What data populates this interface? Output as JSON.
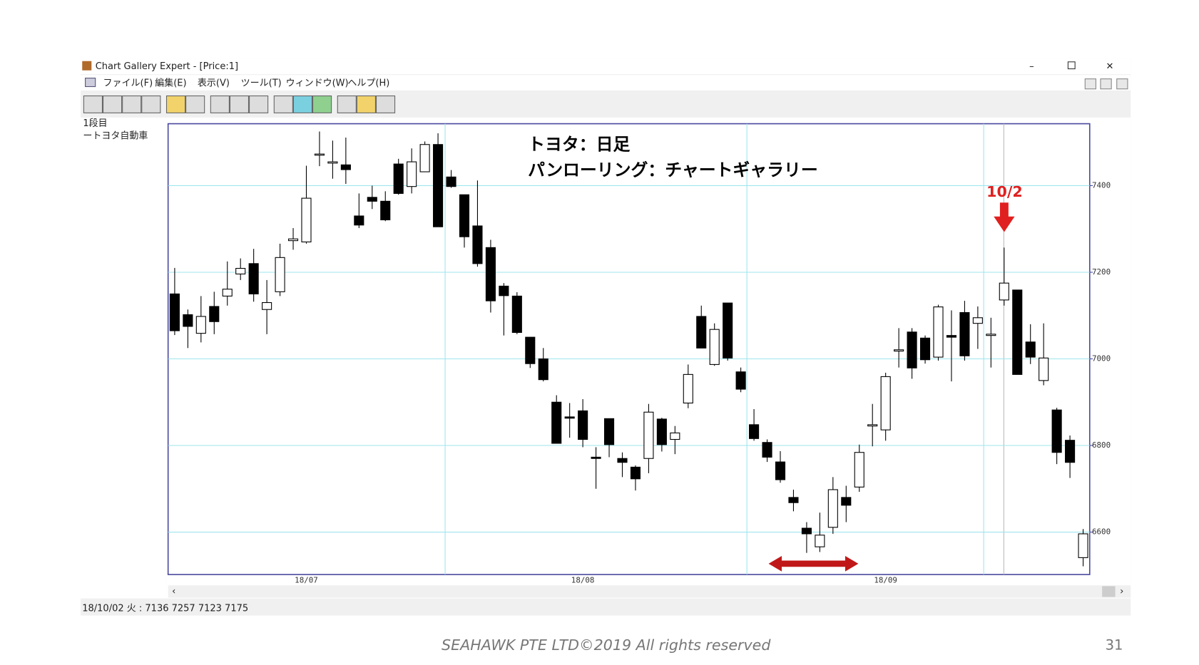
{
  "window": {
    "title": "Chart Gallery Expert - [Price:1]",
    "menu": [
      "ファイル(F)",
      "編集(E)",
      "表示(V)",
      "ツール(T)",
      "ウィンドウ(W)",
      "ヘルプ(H)"
    ]
  },
  "side_panel": [
    "1段目",
    "ートヨタ自動車"
  ],
  "status_bar": "18/10/02 火 : 7136 7257 7123 7175",
  "footer": {
    "text": "SEAHAWK PTE LTD©2019 All rights reserved",
    "page": 31
  },
  "chart_data": {
    "type": "candlestick",
    "title": "トヨタ：日足",
    "subtitle": "パンローリング：チャートギャラリー",
    "annotation": "10/2",
    "up_color": "#ffffff",
    "down_color": "#000000",
    "grid": true,
    "grid_color": "#9fe6ee",
    "categories": [
      null,
      null,
      null,
      null,
      null,
      null,
      null,
      null,
      null,
      null,
      "18/07",
      null,
      null,
      null,
      null,
      null,
      null,
      null,
      null,
      null,
      null,
      null,
      null,
      null,
      null,
      null,
      null,
      null,
      null,
      null,
      null,
      "18/08",
      null,
      null,
      null,
      null,
      null,
      null,
      null,
      null,
      null,
      null,
      null,
      null,
      null,
      null,
      null,
      null,
      null,
      null,
      null,
      null,
      null,
      null,
      "18/09",
      null,
      null,
      null,
      null,
      null,
      null,
      null,
      null,
      null,
      null,
      null,
      null,
      null,
      null,
      null
    ],
    "open": [
      7150,
      7102,
      7059,
      7121,
      7145,
      7196,
      7220,
      7114,
      7155,
      7273,
      7270,
      7471,
      7452,
      7448,
      7330,
      7373,
      7364,
      7450,
      7398,
      7432,
      7495,
      7420,
      7379,
      7307,
      7257,
      7168,
      7145,
      7050,
      7000,
      6900,
      6866,
      6880,
      6773,
      6862,
      6770,
      6750,
      6770,
      6861,
      6814,
      6898,
      7098,
      6987,
      7129,
      6970,
      6848,
      6807,
      6762,
      6680,
      6609,
      6566,
      6611,
      6680,
      6704,
      6845,
      6836,
      7018,
      7062,
      7048,
      7004,
      7054,
      7107,
      7082,
      7054,
      7136,
      7159,
      7039,
      6950,
      6882,
      6812,
      6541
    ],
    "high": [
      7210,
      7114,
      7145,
      7155,
      7225,
      7232,
      7254,
      7182,
      7266,
      7302,
      7446,
      7525,
      7504,
      7511,
      7382,
      7400,
      7387,
      7462,
      7486,
      7502,
      7521,
      7436,
      7379,
      7412,
      7275,
      7175,
      7154,
      7050,
      7025,
      6916,
      6898,
      6907,
      6796,
      6862,
      6784,
      6754,
      6896,
      6864,
      6845,
      6987,
      7123,
      7082,
      7129,
      6980,
      6884,
      6814,
      6787,
      6698,
      6623,
      6645,
      6727,
      6707,
      6802,
      6896,
      6968,
      7071,
      7071,
      7054,
      7125,
      7112,
      7134,
      7121,
      7095,
      7257,
      7159,
      7080,
      7082,
      6887,
      6823,
      6607
    ],
    "low": [
      7055,
      7025,
      7038,
      7057,
      7123,
      7182,
      7132,
      7057,
      7145,
      7252,
      7266,
      7445,
      7416,
      7404,
      7302,
      7346,
      7318,
      7379,
      7382,
      7432,
      7305,
      7395,
      7257,
      7213,
      7107,
      7054,
      7057,
      6979,
      6948,
      6805,
      6818,
      6796,
      6700,
      6773,
      6727,
      6696,
      6736,
      6786,
      6780,
      6886,
      7025,
      6984,
      6996,
      6923,
      6811,
      6762,
      6714,
      6648,
      6552,
      6554,
      6596,
      6623,
      6693,
      6798,
      6811,
      6980,
      6954,
      6989,
      6996,
      6948,
      6996,
      7023,
      6980,
      7123,
      6964,
      6988,
      6939,
      6757,
      6725,
      6521
    ],
    "close": [
      7065,
      7075,
      7098,
      7086,
      7161,
      7209,
      7150,
      7130,
      7234,
      7277,
      7371,
      7473,
      7455,
      7437,
      7309,
      7364,
      7321,
      7382,
      7455,
      7495,
      7305,
      7398,
      7282,
      7220,
      7134,
      7146,
      7061,
      6989,
      6952,
      6805,
      6863,
      6814,
      6770,
      6802,
      6761,
      6723,
      6877,
      6802,
      6829,
      6964,
      7025,
      7068,
      7002,
      6930,
      6816,
      6773,
      6721,
      6668,
      6596,
      6593,
      6698,
      6662,
      6784,
      6848,
      6959,
      7021,
      6979,
      6998,
      7120,
      7050,
      7007,
      7095,
      7057,
      7175,
      6964,
      7004,
      7002,
      6784,
      6761,
      6596
    ],
    "ylim": [
      6502,
      7543
    ],
    "yticks": [
      6600,
      6800,
      7000,
      7200,
      7400
    ]
  }
}
